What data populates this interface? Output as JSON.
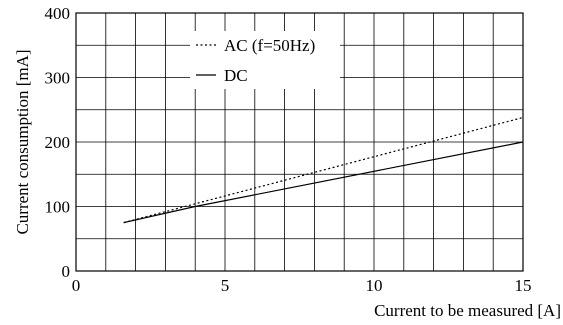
{
  "chart_data": {
    "type": "line",
    "title": "",
    "xlabel": "Current to be measured [A]",
    "ylabel": "Current consumption [mA]",
    "xlim": [
      0,
      15
    ],
    "ylim": [
      0,
      400
    ],
    "x_ticks": [
      0,
      5,
      10,
      15
    ],
    "y_ticks": [
      0,
      100,
      200,
      300,
      400
    ],
    "grid": true,
    "legend_position": "top-center, inside plot",
    "series": [
      {
        "name": "AC (f=50Hz)",
        "line_style": "dotted",
        "color": "#000000",
        "x": [
          1.6,
          15
        ],
        "y": [
          75,
          238
        ]
      },
      {
        "name": "DC",
        "line_style": "solid",
        "color": "#000000",
        "x": [
          1.6,
          4.0,
          15
        ],
        "y": [
          75,
          100,
          200
        ]
      }
    ]
  }
}
